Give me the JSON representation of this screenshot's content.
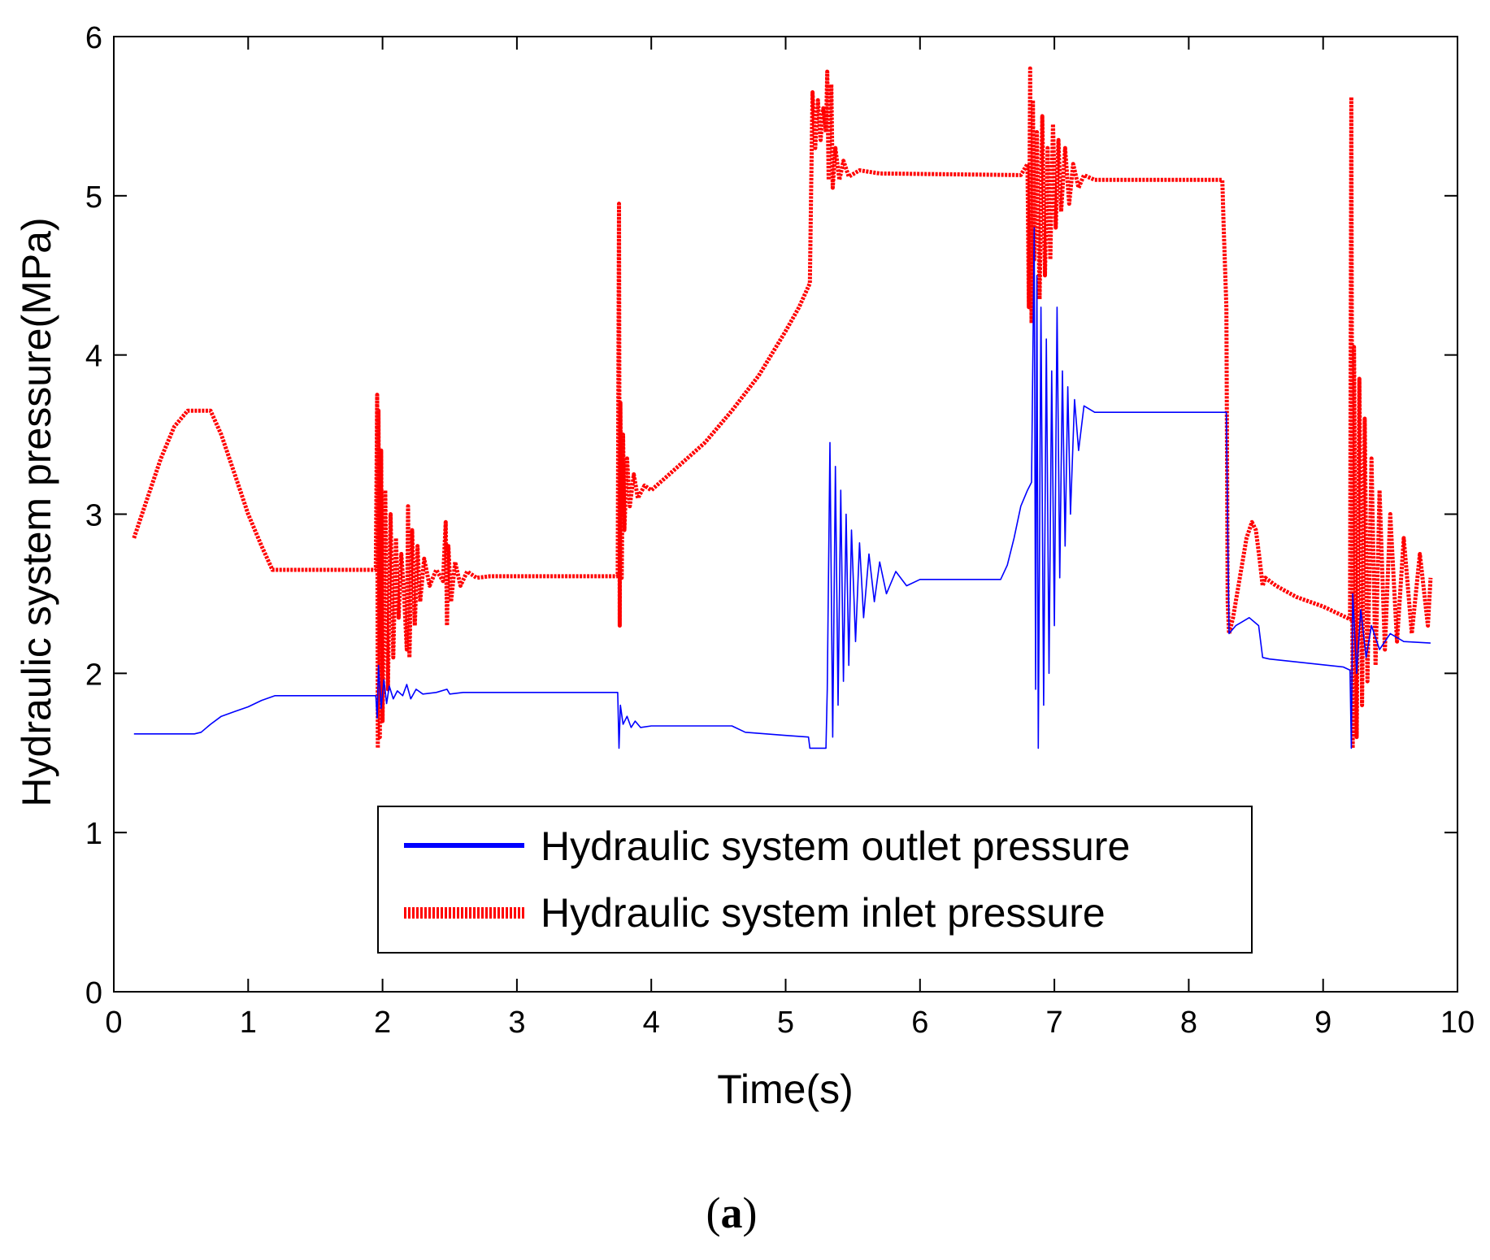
{
  "chart_data": {
    "type": "line",
    "title": "",
    "xlabel": "Time(s)",
    "ylabel": "Hydraulic system pressure(MPa)",
    "xlim": [
      0,
      10
    ],
    "ylim": [
      0,
      6
    ],
    "xticks": [
      0,
      1,
      2,
      3,
      4,
      5,
      6,
      7,
      8,
      9,
      10
    ],
    "yticks": [
      0,
      1,
      2,
      3,
      4,
      5,
      6
    ],
    "grid": false,
    "legend_position": "bottom-center",
    "series": [
      {
        "name": "Hydraulic system outlet pressure",
        "color": "#0000ff",
        "style": "solid",
        "points": [
          [
            0.15,
            1.62
          ],
          [
            0.6,
            1.62
          ],
          [
            0.65,
            1.63
          ],
          [
            0.72,
            1.68
          ],
          [
            0.8,
            1.73
          ],
          [
            0.9,
            1.76
          ],
          [
            1.0,
            1.79
          ],
          [
            1.1,
            1.83
          ],
          [
            1.2,
            1.86
          ],
          [
            1.95,
            1.86
          ],
          [
            1.96,
            1.72
          ],
          [
            1.97,
            2.05
          ],
          [
            1.99,
            1.78
          ],
          [
            2.01,
            1.96
          ],
          [
            2.03,
            1.81
          ],
          [
            2.05,
            1.92
          ],
          [
            2.08,
            1.84
          ],
          [
            2.11,
            1.89
          ],
          [
            2.15,
            1.86
          ],
          [
            2.18,
            1.93
          ],
          [
            2.21,
            1.84
          ],
          [
            2.25,
            1.9
          ],
          [
            2.3,
            1.87
          ],
          [
            2.4,
            1.88
          ],
          [
            2.48,
            1.9
          ],
          [
            2.5,
            1.87
          ],
          [
            2.6,
            1.88
          ],
          [
            3.75,
            1.88
          ],
          [
            3.76,
            1.53
          ],
          [
            3.77,
            1.8
          ],
          [
            3.79,
            1.68
          ],
          [
            3.82,
            1.73
          ],
          [
            3.85,
            1.66
          ],
          [
            3.88,
            1.7
          ],
          [
            3.92,
            1.66
          ],
          [
            4.0,
            1.67
          ],
          [
            4.6,
            1.67
          ],
          [
            4.7,
            1.63
          ],
          [
            5.0,
            1.61
          ],
          [
            5.17,
            1.6
          ],
          [
            5.18,
            1.53
          ],
          [
            5.3,
            1.53
          ],
          [
            5.31,
            1.9
          ],
          [
            5.33,
            3.45
          ],
          [
            5.35,
            1.6
          ],
          [
            5.37,
            3.3
          ],
          [
            5.39,
            1.8
          ],
          [
            5.41,
            3.15
          ],
          [
            5.43,
            1.95
          ],
          [
            5.45,
            3.0
          ],
          [
            5.47,
            2.05
          ],
          [
            5.49,
            2.9
          ],
          [
            5.52,
            2.2
          ],
          [
            5.55,
            2.82
          ],
          [
            5.58,
            2.35
          ],
          [
            5.62,
            2.75
          ],
          [
            5.66,
            2.45
          ],
          [
            5.7,
            2.7
          ],
          [
            5.75,
            2.5
          ],
          [
            5.82,
            2.64
          ],
          [
            5.9,
            2.55
          ],
          [
            6.0,
            2.59
          ],
          [
            6.6,
            2.59
          ],
          [
            6.65,
            2.68
          ],
          [
            6.7,
            2.85
          ],
          [
            6.75,
            3.05
          ],
          [
            6.8,
            3.15
          ],
          [
            6.83,
            3.2
          ],
          [
            6.85,
            4.8
          ],
          [
            6.86,
            1.9
          ],
          [
            6.87,
            4.5
          ],
          [
            6.88,
            1.53
          ],
          [
            6.9,
            4.3
          ],
          [
            6.92,
            1.8
          ],
          [
            6.94,
            4.1
          ],
          [
            6.96,
            2.0
          ],
          [
            6.98,
            3.9
          ],
          [
            7.0,
            2.3
          ],
          [
            7.02,
            4.3
          ],
          [
            7.04,
            2.6
          ],
          [
            7.06,
            3.9
          ],
          [
            7.08,
            2.8
          ],
          [
            7.1,
            3.8
          ],
          [
            7.12,
            3.0
          ],
          [
            7.15,
            3.72
          ],
          [
            7.18,
            3.4
          ],
          [
            7.22,
            3.68
          ],
          [
            7.3,
            3.64
          ],
          [
            8.28,
            3.64
          ],
          [
            8.29,
            2.9
          ],
          [
            8.3,
            2.25
          ],
          [
            8.35,
            2.3
          ],
          [
            8.45,
            2.35
          ],
          [
            8.52,
            2.3
          ],
          [
            8.55,
            2.1
          ],
          [
            8.6,
            2.09
          ],
          [
            9.15,
            2.04
          ],
          [
            9.2,
            2.02
          ],
          [
            9.21,
            1.53
          ],
          [
            9.22,
            2.5
          ],
          [
            9.25,
            2.0
          ],
          [
            9.28,
            2.4
          ],
          [
            9.32,
            2.1
          ],
          [
            9.36,
            2.3
          ],
          [
            9.42,
            2.15
          ],
          [
            9.5,
            2.25
          ],
          [
            9.6,
            2.2
          ],
          [
            9.8,
            2.19
          ]
        ]
      },
      {
        "name": "Hydraulic system inlet pressure",
        "color": "#ff0000",
        "style": "dotted-thick",
        "points": [
          [
            0.15,
            2.85
          ],
          [
            0.25,
            3.1
          ],
          [
            0.35,
            3.35
          ],
          [
            0.45,
            3.55
          ],
          [
            0.55,
            3.65
          ],
          [
            0.72,
            3.65
          ],
          [
            0.8,
            3.5
          ],
          [
            0.9,
            3.25
          ],
          [
            1.0,
            3.0
          ],
          [
            1.1,
            2.8
          ],
          [
            1.18,
            2.65
          ],
          [
            1.95,
            2.65
          ],
          [
            1.96,
            3.75
          ],
          [
            1.965,
            1.53
          ],
          [
            1.97,
            3.65
          ],
          [
            1.98,
            1.6
          ],
          [
            1.99,
            3.4
          ],
          [
            2.0,
            1.7
          ],
          [
            2.02,
            3.15
          ],
          [
            2.04,
            1.9
          ],
          [
            2.06,
            3.0
          ],
          [
            2.08,
            2.1
          ],
          [
            2.1,
            2.85
          ],
          [
            2.12,
            2.35
          ],
          [
            2.14,
            2.75
          ],
          [
            2.16,
            2.5
          ],
          [
            2.18,
            2.15
          ],
          [
            2.19,
            3.05
          ],
          [
            2.2,
            2.1
          ],
          [
            2.22,
            2.9
          ],
          [
            2.24,
            2.3
          ],
          [
            2.26,
            2.8
          ],
          [
            2.28,
            2.45
          ],
          [
            2.31,
            2.72
          ],
          [
            2.35,
            2.55
          ],
          [
            2.4,
            2.65
          ],
          [
            2.45,
            2.58
          ],
          [
            2.47,
            2.95
          ],
          [
            2.48,
            2.3
          ],
          [
            2.49,
            2.8
          ],
          [
            2.51,
            2.45
          ],
          [
            2.54,
            2.7
          ],
          [
            2.58,
            2.55
          ],
          [
            2.63,
            2.64
          ],
          [
            2.7,
            2.6
          ],
          [
            2.8,
            2.61
          ],
          [
            3.75,
            2.61
          ],
          [
            3.76,
            4.95
          ],
          [
            3.765,
            2.3
          ],
          [
            3.77,
            3.7
          ],
          [
            3.78,
            2.6
          ],
          [
            3.79,
            3.5
          ],
          [
            3.8,
            2.9
          ],
          [
            3.82,
            3.35
          ],
          [
            3.84,
            3.05
          ],
          [
            3.87,
            3.25
          ],
          [
            3.9,
            3.1
          ],
          [
            3.95,
            3.18
          ],
          [
            4.0,
            3.15
          ],
          [
            4.2,
            3.3
          ],
          [
            4.4,
            3.45
          ],
          [
            4.6,
            3.65
          ],
          [
            4.8,
            3.87
          ],
          [
            5.0,
            4.15
          ],
          [
            5.1,
            4.3
          ],
          [
            5.18,
            4.45
          ],
          [
            5.19,
            5.05
          ],
          [
            5.2,
            5.65
          ],
          [
            5.22,
            5.3
          ],
          [
            5.24,
            5.6
          ],
          [
            5.26,
            5.35
          ],
          [
            5.28,
            5.55
          ],
          [
            5.3,
            5.4
          ],
          [
            5.31,
            5.78
          ],
          [
            5.32,
            5.1
          ],
          [
            5.34,
            5.7
          ],
          [
            5.35,
            5.05
          ],
          [
            5.37,
            5.3
          ],
          [
            5.4,
            5.1
          ],
          [
            5.43,
            5.22
          ],
          [
            5.47,
            5.12
          ],
          [
            5.55,
            5.16
          ],
          [
            5.7,
            5.14
          ],
          [
            6.75,
            5.13
          ],
          [
            6.8,
            5.2
          ],
          [
            6.81,
            4.3
          ],
          [
            6.82,
            5.8
          ],
          [
            6.83,
            4.2
          ],
          [
            6.84,
            5.6
          ],
          [
            6.85,
            4.6
          ],
          [
            6.87,
            5.4
          ],
          [
            6.89,
            4.35
          ],
          [
            6.91,
            5.5
          ],
          [
            6.93,
            4.5
          ],
          [
            6.95,
            5.3
          ],
          [
            6.97,
            4.6
          ],
          [
            6.99,
            5.45
          ],
          [
            7.01,
            4.8
          ],
          [
            7.03,
            5.35
          ],
          [
            7.05,
            4.9
          ],
          [
            7.08,
            5.3
          ],
          [
            7.11,
            4.95
          ],
          [
            7.14,
            5.2
          ],
          [
            7.18,
            5.05
          ],
          [
            7.22,
            5.13
          ],
          [
            7.3,
            5.1
          ],
          [
            8.25,
            5.1
          ],
          [
            8.26,
            4.8
          ],
          [
            8.28,
            4.3
          ],
          [
            8.29,
            2.45
          ],
          [
            8.3,
            2.25
          ],
          [
            8.33,
            2.35
          ],
          [
            8.38,
            2.6
          ],
          [
            8.43,
            2.85
          ],
          [
            8.47,
            2.95
          ],
          [
            8.5,
            2.9
          ],
          [
            8.53,
            2.7
          ],
          [
            8.55,
            2.55
          ],
          [
            8.57,
            2.6
          ],
          [
            8.65,
            2.55
          ],
          [
            8.8,
            2.48
          ],
          [
            9.0,
            2.42
          ],
          [
            9.15,
            2.36
          ],
          [
            9.2,
            2.34
          ],
          [
            9.21,
            5.62
          ],
          [
            9.22,
            1.53
          ],
          [
            9.23,
            4.05
          ],
          [
            9.25,
            1.6
          ],
          [
            9.27,
            3.85
          ],
          [
            9.29,
            1.8
          ],
          [
            9.31,
            3.6
          ],
          [
            9.33,
            1.95
          ],
          [
            9.36,
            3.35
          ],
          [
            9.39,
            2.05
          ],
          [
            9.42,
            3.15
          ],
          [
            9.46,
            2.15
          ],
          [
            9.5,
            3.0
          ],
          [
            9.55,
            2.2
          ],
          [
            9.6,
            2.85
          ],
          [
            9.66,
            2.25
          ],
          [
            9.72,
            2.75
          ],
          [
            9.78,
            2.3
          ],
          [
            9.8,
            2.6
          ]
        ]
      }
    ]
  },
  "caption": {
    "open": "(",
    "letter": "a",
    "close": ")"
  }
}
